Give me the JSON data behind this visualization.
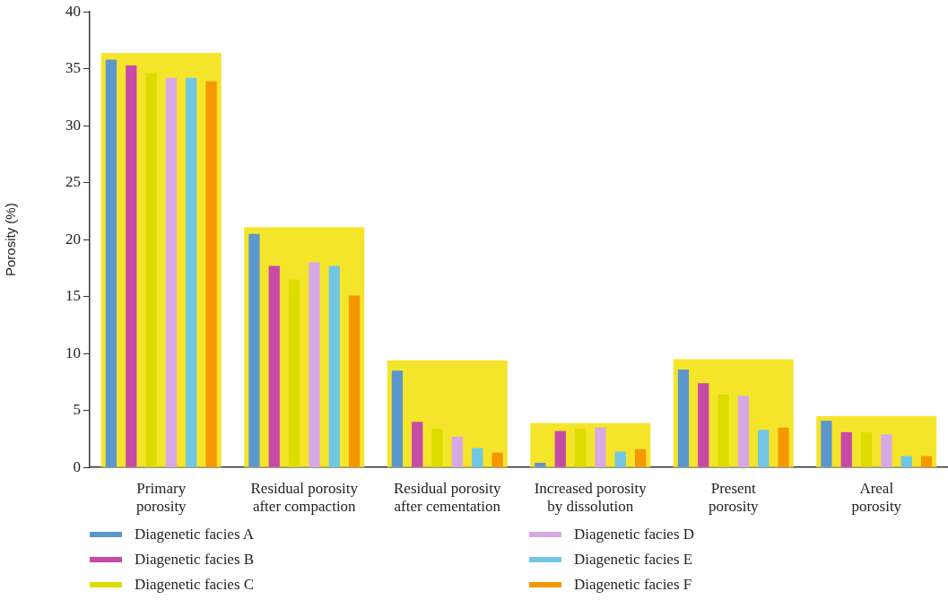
{
  "chart_data": {
    "type": "bar",
    "ylabel": "Porosity (%)",
    "categories": [
      "Primary porosity",
      "Residual porosity after compaction",
      "Residual porosity after cementation",
      "Increased porosity by dissolution",
      "Present porosity",
      "Areal porosity"
    ],
    "series": [
      {
        "name": "Diagenetic facies A",
        "color": "#5b97cc",
        "values": [
          35.8,
          20.5,
          8.5,
          0.4,
          8.6,
          4.1
        ]
      },
      {
        "name": "Diagenetic facies B",
        "color": "#c74aa6",
        "values": [
          35.3,
          17.7,
          4.0,
          3.2,
          7.4,
          3.1
        ]
      },
      {
        "name": "Diagenetic facies C",
        "color": "#dcdc00",
        "values": [
          34.6,
          16.5,
          3.4,
          3.4,
          6.4,
          3.1
        ]
      },
      {
        "name": "Diagenetic facies D",
        "color": "#d6a8e6",
        "values": [
          34.2,
          18.0,
          2.7,
          3.5,
          6.3,
          2.9
        ]
      },
      {
        "name": "Diagenetic facies E",
        "color": "#70c6e4",
        "values": [
          34.2,
          17.7,
          1.7,
          1.4,
          3.3,
          1.0
        ]
      },
      {
        "name": "Diagenetic facies F",
        "color": "#f39800",
        "values": [
          33.9,
          15.1,
          1.3,
          1.6,
          3.5,
          1.0
        ]
      },
      {
        "color": "#f5e52a",
        "values": [
          36.4,
          21.1,
          9.4,
          3.9,
          9.5,
          4.5
        ]
      }
    ],
    "ylim": [
      0,
      40
    ],
    "yticks": [
      0,
      5,
      10,
      15,
      20,
      25,
      30,
      35,
      40
    ],
    "grid": false,
    "legend": "bottom"
  }
}
